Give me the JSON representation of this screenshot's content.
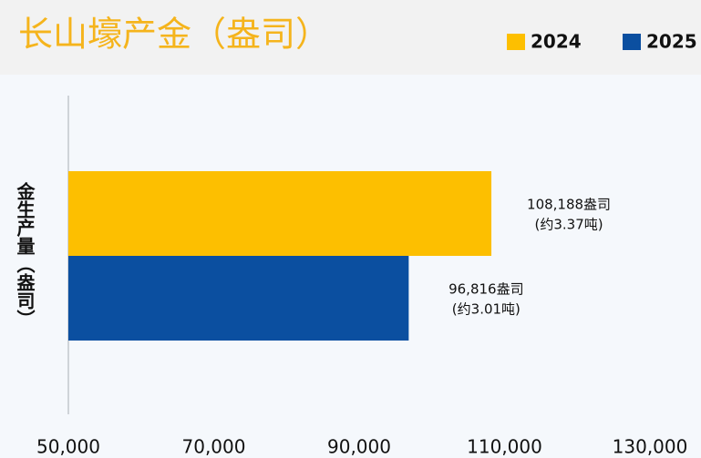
{
  "chart_data": {
    "type": "barh",
    "title": "长山壕产金（盎司）",
    "ylabel": "金生产量（盎司）",
    "series": [
      {
        "name": "2024",
        "color": "#fdbf00",
        "values": [
          108188
        ],
        "value_labels": [
          [
            "108,188盎司",
            "(约3.37吨)"
          ]
        ]
      },
      {
        "name": "2025",
        "color": "#0b4fa0",
        "values": [
          96816
        ],
        "value_labels": [
          [
            "96,816盎司",
            "(约3.01吨)"
          ]
        ]
      }
    ],
    "xlim": [
      50000,
      130000
    ],
    "xticks": [
      {
        "value": 50000,
        "label": "50,000"
      },
      {
        "value": 70000,
        "label": "70,000"
      },
      {
        "value": 90000,
        "label": "90,000"
      },
      {
        "value": 110000,
        "label": "110,000"
      },
      {
        "value": 130000,
        "label": "130,000"
      }
    ],
    "legend": "top-right"
  }
}
